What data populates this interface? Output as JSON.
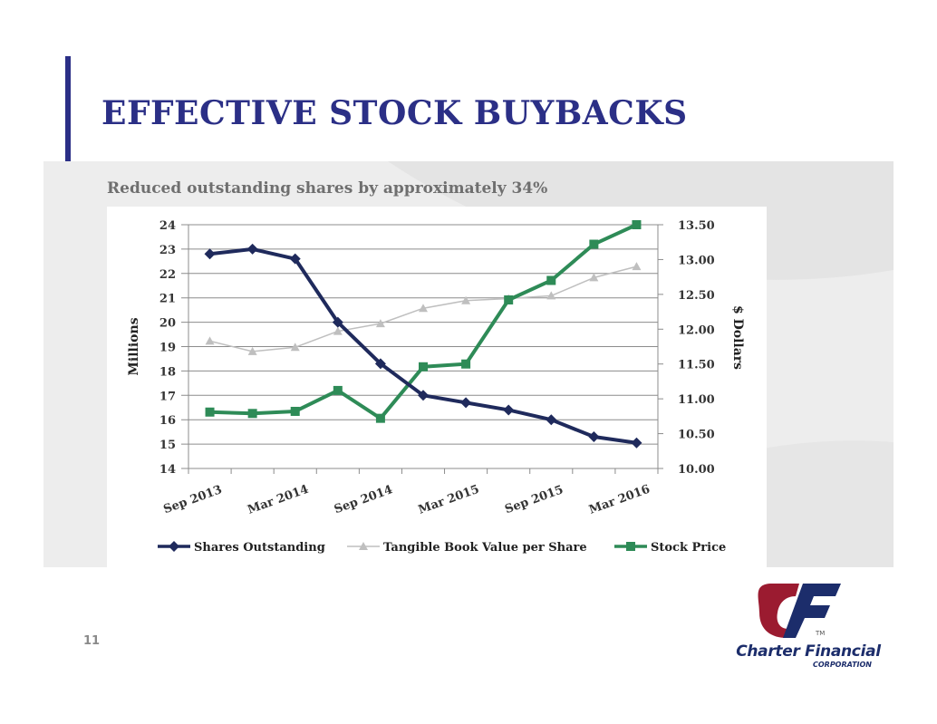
{
  "slide": {
    "title": "EFFECTIVE STOCK BUYBACKS",
    "subtitle": "Reduced outstanding shares by approximately 34%",
    "page_number": "11",
    "accent_color": "#2b2f86"
  },
  "logo": {
    "name": "Charter Financial",
    "sub": "CORPORATION",
    "tm": "TM",
    "icon": "charter-financial-eagle-cf-logo"
  },
  "chart_data": {
    "type": "line",
    "title": "",
    "categories": [
      "Sep 2013",
      "Dec 2013",
      "Mar 2014",
      "Jun 2014",
      "Sep 2014",
      "Dec 2014",
      "Mar 2015",
      "Jun 2015",
      "Sep 2015",
      "Dec 2015",
      "Mar 2016"
    ],
    "x_tick_labels": [
      "Sep 2013",
      "Mar 2014",
      "Sep 2014",
      "Mar 2015",
      "Sep 2015",
      "Mar 2016"
    ],
    "ylabel": "Millions",
    "y2label": "$ Dollars",
    "ylim": [
      14,
      24
    ],
    "y_ticks": [
      "14",
      "15",
      "16",
      "17",
      "18",
      "19",
      "20",
      "21",
      "22",
      "23",
      "24"
    ],
    "y2lim": [
      10.0,
      13.5
    ],
    "y2_ticks": [
      "10.00",
      "10.50",
      "11.00",
      "11.50",
      "12.00",
      "12.50",
      "13.00",
      "13.50"
    ],
    "grid": "horizontal",
    "legend_position": "bottom",
    "series": [
      {
        "name": "Shares Outstanding",
        "axis": "left",
        "marker": "diamond",
        "color": "#1f2a5c",
        "values": [
          22.8,
          23.0,
          22.6,
          20.0,
          18.3,
          17.0,
          16.7,
          16.4,
          16.0,
          15.3,
          15.05
        ]
      },
      {
        "name": "Tangible Book Value per Share",
        "axis": "right",
        "marker": "triangle",
        "color": "#bfbfbf",
        "values": [
          11.83,
          11.68,
          11.74,
          11.97,
          12.08,
          12.3,
          12.41,
          12.44,
          12.48,
          12.74,
          12.9
        ]
      },
      {
        "name": "Stock Price",
        "axis": "right",
        "marker": "square",
        "color": "#2e8b57",
        "values": [
          10.81,
          10.79,
          10.82,
          11.12,
          10.72,
          11.46,
          11.5,
          12.42,
          12.7,
          13.22,
          13.5
        ]
      }
    ]
  }
}
